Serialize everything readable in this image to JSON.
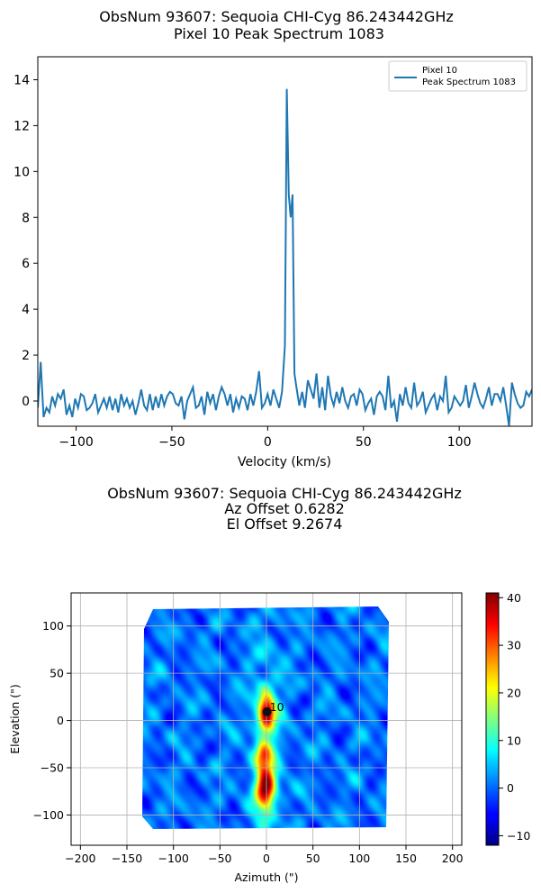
{
  "chart_data": [
    {
      "type": "line",
      "title": "ObsNum 93607: Sequoia CHI-Cyg 86.243442GHz",
      "subtitle": "Pixel 10 Peak Spectrum 1083",
      "xlabel": "Velocity (km/s)",
      "ylabel": "",
      "xlim": [
        -120,
        138
      ],
      "ylim": [
        -1.1,
        15
      ],
      "xticks": [
        -100,
        -50,
        0,
        50,
        100
      ],
      "yticks": [
        0,
        2,
        4,
        6,
        8,
        10,
        12,
        14
      ],
      "legend": {
        "position": "top-right",
        "entries": [
          "Pixel 10",
          "Peak Spectrum 1083"
        ]
      },
      "color": "#1f77b4",
      "series": [
        {
          "name": "Pixel 10 Peak Spectrum 1083",
          "x": [
            -120,
            -118.5,
            -117,
            -115.5,
            -114,
            -112.5,
            -111,
            -109.5,
            -108,
            -106.5,
            -105,
            -103.5,
            -102,
            -100.5,
            -99,
            -97.5,
            -96,
            -94.5,
            -93,
            -91.5,
            -90,
            -88.5,
            -87,
            -85.5,
            -84,
            -82.5,
            -81,
            -79.5,
            -78,
            -76.5,
            -75,
            -73.5,
            -72,
            -70.5,
            -69,
            -67.5,
            -66,
            -64.5,
            -63,
            -61.5,
            -60,
            -58.5,
            -57,
            -55.5,
            -54,
            -52.5,
            -51,
            -49.5,
            -48,
            -46.5,
            -45,
            -43.5,
            -42,
            -40.5,
            -39,
            -37.5,
            -36,
            -34.5,
            -33,
            -31.5,
            -30,
            -28.5,
            -27,
            -25.5,
            -24,
            -22.5,
            -21,
            -19.5,
            -18,
            -16.5,
            -15,
            -13.5,
            -12,
            -10.5,
            -9,
            -7.5,
            -6,
            -4.5,
            -3,
            -1.5,
            0,
            1.5,
            3,
            4.5,
            6,
            7.5,
            9,
            10,
            11,
            12,
            13,
            14,
            15,
            16.5,
            18,
            19.5,
            21,
            22.5,
            24,
            25.5,
            27,
            28.5,
            30,
            31.5,
            33,
            34.5,
            36,
            37.5,
            39,
            40.5,
            42,
            43.5,
            45,
            46.5,
            48,
            49.5,
            51,
            52.5,
            54,
            55.5,
            57,
            58.5,
            60,
            61.5,
            63,
            64.5,
            66,
            67.5,
            69,
            70.5,
            72,
            73.5,
            75,
            76.5,
            78,
            79.5,
            81,
            82.5,
            84,
            85.5,
            87,
            88.5,
            90,
            91.5,
            93,
            94.5,
            96,
            97.5,
            99,
            100.5,
            102,
            103.5,
            105,
            106.5,
            108,
            109.5,
            111,
            112.5,
            114,
            115.5,
            117,
            118.5,
            120,
            121.5,
            123,
            124.5,
            126,
            127.5,
            129,
            130.5,
            132,
            133.5,
            135,
            136.5,
            138
          ],
          "y": [
            -0.3,
            1.7,
            -0.7,
            -0.3,
            -0.5,
            0.2,
            -0.2,
            0.3,
            0.1,
            0.5,
            -0.6,
            -0.2,
            -0.7,
            0.1,
            -0.3,
            0.3,
            0.2,
            -0.4,
            -0.3,
            -0.1,
            0.3,
            -0.5,
            -0.2,
            0.1,
            -0.3,
            0.2,
            -0.4,
            0.1,
            -0.5,
            0.3,
            -0.2,
            0.1,
            -0.3,
            0.0,
            -0.6,
            -0.1,
            0.5,
            -0.2,
            -0.4,
            0.3,
            -0.4,
            0.2,
            -0.3,
            0.3,
            -0.2,
            0.2,
            0.4,
            0.3,
            -0.1,
            -0.2,
            0.2,
            -0.8,
            0.0,
            0.3,
            0.6,
            -0.3,
            -0.2,
            0.2,
            -0.6,
            0.4,
            -0.1,
            0.3,
            -0.4,
            0.2,
            0.6,
            0.3,
            -0.2,
            0.3,
            -0.5,
            0.1,
            -0.3,
            0.2,
            0.1,
            -0.4,
            0.3,
            -0.2,
            0.4,
            1.3,
            -0.3,
            -0.1,
            0.3,
            -0.2,
            0.5,
            0.1,
            -0.3,
            0.4,
            2.4,
            13.6,
            9.0,
            8.0,
            9.0,
            1.2,
            0.6,
            -0.2,
            0.4,
            -0.3,
            0.9,
            0.5,
            0.1,
            1.2,
            -0.3,
            0.6,
            -0.4,
            1.1,
            0.2,
            -0.2,
            0.4,
            -0.1,
            0.6,
            0.0,
            -0.3,
            0.2,
            0.3,
            -0.2,
            0.5,
            0.3,
            -0.4,
            -0.1,
            0.1,
            -0.6,
            0.2,
            0.4,
            0.2,
            -0.4,
            1.1,
            -0.3,
            0.0,
            -0.9,
            0.3,
            -0.2,
            0.6,
            -0.1,
            -0.3,
            0.8,
            -0.2,
            0.0,
            0.4,
            -0.5,
            -0.2,
            0.1,
            0.3,
            -0.4,
            0.2,
            0.0,
            1.1,
            -0.5,
            -0.3,
            0.2,
            0.0,
            -0.2,
            0.0,
            0.7,
            -0.3,
            0.2,
            0.8,
            0.3,
            -0.1,
            -0.3,
            0.1,
            0.6,
            -0.2,
            0.3,
            0.3,
            0.0,
            0.6,
            -0.2,
            -1.1,
            0.8,
            0.3,
            -0.1,
            -0.3,
            -0.2,
            0.4,
            0.2,
            0.5
          ]
        }
      ]
    },
    {
      "type": "heatmap",
      "title": "ObsNum 93607: Sequoia CHI-Cyg 86.243442GHz",
      "subtitle_lines": [
        "Az Offset  0.6282",
        "El Offset  9.2674"
      ],
      "xlabel": "Azimuth (\")",
      "ylabel": "Elevation (\")",
      "xlim": [
        -210,
        210
      ],
      "ylim": [
        -132,
        135
      ],
      "xticks": [
        -200,
        -150,
        -100,
        -50,
        0,
        50,
        100,
        150,
        200
      ],
      "yticks": [
        -100,
        -50,
        0,
        50,
        100
      ],
      "grid": true,
      "colormap": "jet",
      "colorbar": {
        "vmin": -12,
        "vmax": 41,
        "ticks": [
          -10,
          0,
          10,
          20,
          30,
          40
        ]
      },
      "map_extent": {
        "az": [
          -128,
          130
        ],
        "el": [
          -120,
          120
        ]
      },
      "emission_peaks": [
        {
          "az": 0,
          "el": 9,
          "sigma_az": 6,
          "sigma_el": 13,
          "amp": 35
        },
        {
          "az": -3,
          "el": -35,
          "sigma_az": 6,
          "sigma_el": 9,
          "amp": 18
        },
        {
          "az": -1,
          "el": -70,
          "sigma_az": 7,
          "sigma_el": 17,
          "amp": 36
        },
        {
          "az": 0,
          "el": -20,
          "sigma_az": 12,
          "sigma_el": 70,
          "amp": 8
        }
      ],
      "marker": {
        "label": "10",
        "az": 0.6282,
        "el": 9.2674
      }
    }
  ]
}
